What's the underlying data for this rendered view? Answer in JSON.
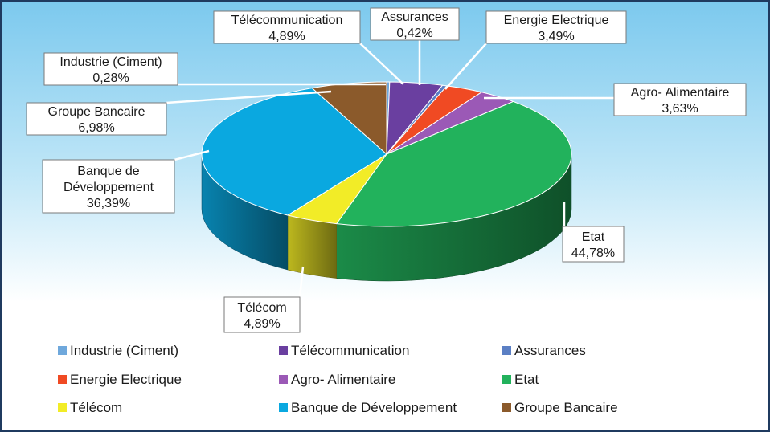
{
  "chart_data": {
    "type": "pie",
    "title": "",
    "categories": [
      "Industrie (Ciment)",
      "Télécommunication",
      "Assurances",
      "Energie Electrique",
      "Agro- Alimentaire",
      "Etat",
      "Télécom",
      "Banque de Développement",
      "Groupe Bancaire"
    ],
    "values": [
      0.28,
      4.89,
      0.42,
      3.49,
      3.63,
      44.78,
      4.89,
      36.39,
      6.98
    ],
    "value_labels": [
      "0,28%",
      "4,89%",
      "0,42%",
      "3,49%",
      "3,63%",
      "44,78%",
      "4,89%",
      "36,39%",
      "6,98%"
    ],
    "colors": [
      "#6fa8dc",
      "#6a3fa0",
      "#5b7fc4",
      "#f04a23",
      "#9b59b6",
      "#22b25c",
      "#f2ec27",
      "#0aa8e0",
      "#8b5a2b"
    ],
    "style": "3d-exploded-none",
    "legend_position": "bottom",
    "data_labels": "callouts"
  },
  "callouts": [
    {
      "lines": [
        "Industrie (Ciment)",
        "0,28%"
      ]
    },
    {
      "lines": [
        "Télécommunication",
        "4,89%"
      ]
    },
    {
      "lines": [
        "Assurances",
        "0,42%"
      ]
    },
    {
      "lines": [
        "Energie Electrique",
        "3,49%"
      ]
    },
    {
      "lines": [
        "Agro- Alimentaire",
        "3,63%"
      ]
    },
    {
      "lines": [
        "Etat",
        "44,78%"
      ]
    },
    {
      "lines": [
        "Télécom",
        "4,89%"
      ]
    },
    {
      "lines": [
        "Banque de",
        "Développement",
        "36,39%"
      ]
    },
    {
      "lines": [
        "Groupe Bancaire",
        "6,98%"
      ]
    }
  ]
}
